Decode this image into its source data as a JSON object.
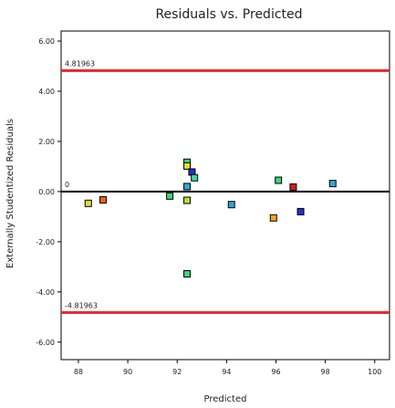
{
  "chart_data": {
    "type": "scatter",
    "title": "Residuals vs. Predicted",
    "xlabel": "Predicted",
    "ylabel": "Externally Studentized Residuals",
    "xlim": [
      87.3,
      100.6
    ],
    "ylim": [
      -6.7,
      6.4
    ],
    "x_ticks": [
      {
        "value": 88,
        "label": "88"
      },
      {
        "value": 90,
        "label": "90"
      },
      {
        "value": 92,
        "label": "92"
      },
      {
        "value": 94,
        "label": "94"
      },
      {
        "value": 96,
        "label": "96"
      },
      {
        "value": 98,
        "label": "98"
      },
      {
        "value": 100,
        "label": "100"
      }
    ],
    "y_ticks": [
      {
        "value": 6,
        "label": "6.00"
      },
      {
        "value": 4,
        "label": "4.00"
      },
      {
        "value": 2,
        "label": "2.00"
      },
      {
        "value": 0,
        "label": "0.00"
      },
      {
        "value": -2,
        "label": "-2.00"
      },
      {
        "value": -4,
        "label": "-4.00"
      },
      {
        "value": -6,
        "label": "-6.00"
      }
    ],
    "grid": false,
    "reference_lines": [
      {
        "value": 4.81963,
        "label": "4.81963",
        "color": "#e8262b"
      },
      {
        "value": 0,
        "label": "0",
        "color": "#000000"
      },
      {
        "value": -4.81963,
        "label": "-4.81963",
        "color": "#e8262b"
      }
    ],
    "points": [
      {
        "x": 88.4,
        "y": -0.47,
        "color": "#dede3a"
      },
      {
        "x": 89.0,
        "y": -0.33,
        "color": "#e8641c"
      },
      {
        "x": 91.7,
        "y": -0.18,
        "color": "#3fd675"
      },
      {
        "x": 92.4,
        "y": 1.17,
        "color": "#3fd675"
      },
      {
        "x": 92.4,
        "y": 1.02,
        "color": "#dede3a"
      },
      {
        "x": 92.6,
        "y": 0.78,
        "color": "#2b2bd4"
      },
      {
        "x": 92.7,
        "y": 0.55,
        "color": "#3fd6b0"
      },
      {
        "x": 92.4,
        "y": 0.2,
        "color": "#2aa8e0"
      },
      {
        "x": 92.4,
        "y": -0.35,
        "color": "#b4e03a"
      },
      {
        "x": 92.4,
        "y": -3.28,
        "color": "#3fd675"
      },
      {
        "x": 94.2,
        "y": -0.52,
        "color": "#2aa8e0"
      },
      {
        "x": 95.9,
        "y": -1.05,
        "color": "#f5a623"
      },
      {
        "x": 96.1,
        "y": 0.45,
        "color": "#3fd675"
      },
      {
        "x": 96.7,
        "y": 0.18,
        "color": "#cc1f1f"
      },
      {
        "x": 97.0,
        "y": -0.8,
        "color": "#2b2bd4"
      },
      {
        "x": 98.3,
        "y": 0.32,
        "color": "#2aa8e0"
      }
    ]
  }
}
